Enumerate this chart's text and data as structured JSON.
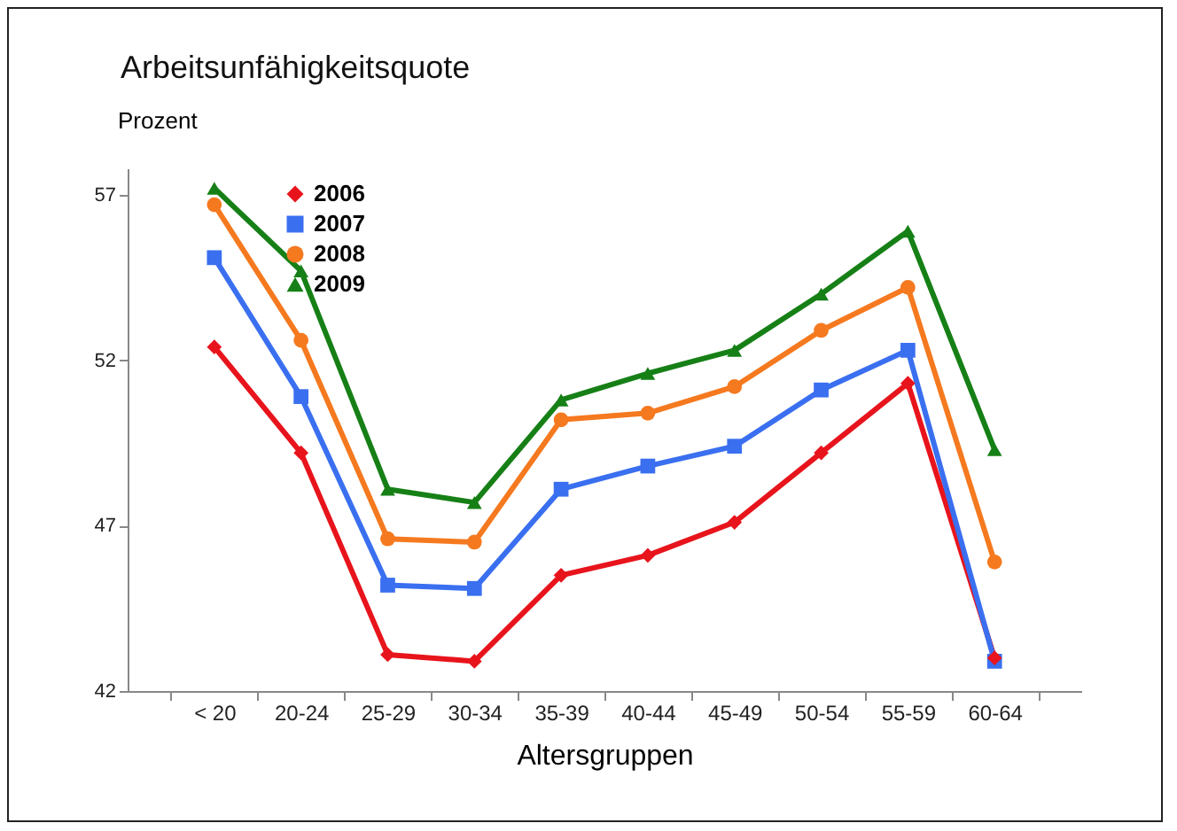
{
  "chart_data": {
    "type": "line",
    "title": "Arbeitsunfähigkeitsquote",
    "ylabel": "Prozent",
    "xlabel": "Altersgruppen",
    "categories": [
      "< 20",
      "20-24",
      "25-29",
      "30-34",
      "35-39",
      "40-44",
      "45-49",
      "50-54",
      "55-59",
      "60-64"
    ],
    "series": [
      {
        "name": "2006",
        "color": "#e8141c",
        "marker": "diamond",
        "values": [
          52.4,
          49.2,
          43.1,
          42.9,
          45.5,
          46.1,
          47.1,
          49.2,
          51.3,
          43.0
        ]
      },
      {
        "name": "2007",
        "color": "#3a6ff0",
        "marker": "square",
        "values": [
          55.1,
          50.9,
          45.2,
          45.1,
          48.1,
          48.8,
          49.4,
          51.1,
          52.3,
          42.9
        ]
      },
      {
        "name": "2008",
        "color": "#f5791f",
        "marker": "circle",
        "values": [
          56.7,
          52.6,
          46.6,
          46.5,
          50.2,
          50.4,
          51.2,
          52.9,
          54.2,
          45.9
        ]
      },
      {
        "name": "2009",
        "color": "#168016",
        "marker": "triangle",
        "values": [
          57.2,
          54.7,
          48.1,
          47.7,
          50.8,
          51.6,
          52.3,
          54.0,
          55.9,
          49.3
        ]
      }
    ],
    "ylim": [
      42,
      57.8
    ],
    "yticks": [
      42,
      47,
      52,
      57
    ],
    "grid": false,
    "legend": "top left",
    "line_style": "solid"
  }
}
